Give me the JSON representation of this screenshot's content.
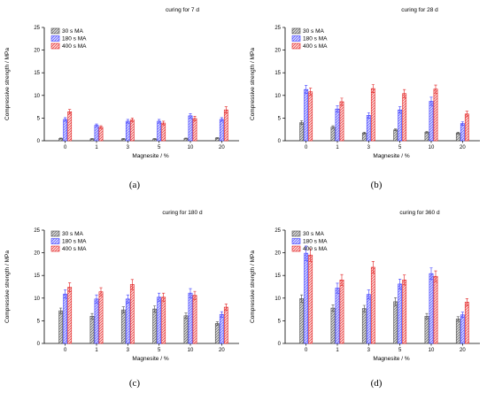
{
  "colors": {
    "s30": "#4d4d4d",
    "s180": "#3a3aff",
    "s400": "#e02020"
  },
  "chart_data": [
    {
      "type": "bar",
      "title": "curing for 7 d",
      "panel_label": "(a)",
      "xlabel": "Magnesite / %",
      "ylabel": "Compressive strength / MPa",
      "categories": [
        "0",
        "1",
        "3",
        "5",
        "10",
        "20"
      ],
      "ylim": [
        0,
        25
      ],
      "yticks": [
        "0",
        "5",
        "10",
        "15",
        "20",
        "25"
      ],
      "legend_position": "top-left",
      "grid": false,
      "series": [
        {
          "name": "30 s MA",
          "values": [
            0.5,
            0.4,
            0.4,
            0.4,
            0.5,
            0.6
          ],
          "errors": [
            0.1,
            0.1,
            0.1,
            0.1,
            0.1,
            0.1
          ]
        },
        {
          "name": "180 s MA",
          "values": [
            4.7,
            3.4,
            4.3,
            4.3,
            5.5,
            4.7
          ],
          "errors": [
            0.4,
            0.3,
            0.4,
            0.4,
            0.5,
            0.4
          ]
        },
        {
          "name": "400 s MA",
          "values": [
            6.4,
            3.0,
            4.6,
            3.9,
            4.9,
            6.8
          ],
          "errors": [
            0.5,
            0.3,
            0.4,
            0.4,
            0.5,
            0.7
          ]
        }
      ]
    },
    {
      "type": "bar",
      "title": "curing for 28 d",
      "panel_label": "(b)",
      "xlabel": "Magnesite / %",
      "ylabel": "Compressive strength / MPa",
      "categories": [
        "0",
        "1",
        "3",
        "5",
        "10",
        "20"
      ],
      "ylim": [
        0,
        25
      ],
      "yticks": [
        "0",
        "5",
        "10",
        "15",
        "20",
        "25"
      ],
      "legend_position": "top-left",
      "grid": false,
      "series": [
        {
          "name": "30 s MA",
          "values": [
            4.0,
            3.0,
            1.7,
            2.4,
            1.9,
            1.7
          ],
          "errors": [
            0.4,
            0.3,
            0.2,
            0.2,
            0.2,
            0.2
          ]
        },
        {
          "name": "180 s MA",
          "values": [
            11.3,
            7.0,
            5.6,
            6.8,
            8.7,
            3.8
          ],
          "errors": [
            0.9,
            0.7,
            0.6,
            0.7,
            0.9,
            0.4
          ]
        },
        {
          "name": "400 s MA",
          "values": [
            10.8,
            8.6,
            11.5,
            10.4,
            11.4,
            5.9
          ],
          "errors": [
            0.8,
            0.8,
            0.9,
            0.9,
            0.9,
            0.6
          ]
        }
      ]
    },
    {
      "type": "bar",
      "title": "curing for 180 d",
      "panel_label": "(c)",
      "xlabel": "Magnesite / %",
      "ylabel": "Compressive strength / MPa",
      "categories": [
        "0",
        "1",
        "3",
        "5",
        "10",
        "20"
      ],
      "ylim": [
        0,
        25
      ],
      "yticks": [
        "0",
        "5",
        "10",
        "15",
        "20",
        "25"
      ],
      "legend_position": "top-left",
      "grid": false,
      "series": [
        {
          "name": "30 s MA",
          "values": [
            7.2,
            6.0,
            7.4,
            7.6,
            6.1,
            4.4
          ],
          "errors": [
            0.6,
            0.6,
            0.7,
            0.7,
            0.6,
            0.4
          ]
        },
        {
          "name": "180 s MA",
          "values": [
            10.9,
            9.8,
            9.8,
            10.2,
            11.1,
            6.4
          ],
          "errors": [
            0.9,
            0.9,
            0.9,
            0.9,
            1.0,
            0.6
          ]
        },
        {
          "name": "400 s MA",
          "values": [
            12.4,
            11.4,
            13.0,
            10.2,
            10.6,
            8.0
          ],
          "errors": [
            1.0,
            0.9,
            1.1,
            0.9,
            0.9,
            0.7
          ]
        }
      ]
    },
    {
      "type": "bar",
      "title": "curing for 360 d",
      "panel_label": "(d)",
      "xlabel": "Magnesite / %",
      "ylabel": "Compressive strength / MPa",
      "categories": [
        "0",
        "1",
        "3",
        "5",
        "10",
        "20"
      ],
      "ylim": [
        0,
        25
      ],
      "yticks": [
        "0",
        "5",
        "10",
        "15",
        "20",
        "25"
      ],
      "legend_position": "top-left",
      "grid": false,
      "series": [
        {
          "name": "30 s MA",
          "values": [
            9.9,
            7.8,
            7.7,
            9.2,
            6.0,
            5.4
          ],
          "errors": [
            0.8,
            0.7,
            0.7,
            0.9,
            0.6,
            0.5
          ]
        },
        {
          "name": "180 s MA",
          "values": [
            19.9,
            12.2,
            10.8,
            13.1,
            15.4,
            6.3
          ],
          "errors": [
            1.6,
            1.1,
            1.0,
            1.1,
            1.3,
            0.6
          ]
        },
        {
          "name": "400 s MA",
          "values": [
            19.5,
            14.0,
            16.8,
            14.0,
            14.8,
            9.1
          ],
          "errors": [
            1.4,
            1.2,
            1.3,
            1.1,
            1.2,
            0.8
          ]
        }
      ]
    }
  ]
}
